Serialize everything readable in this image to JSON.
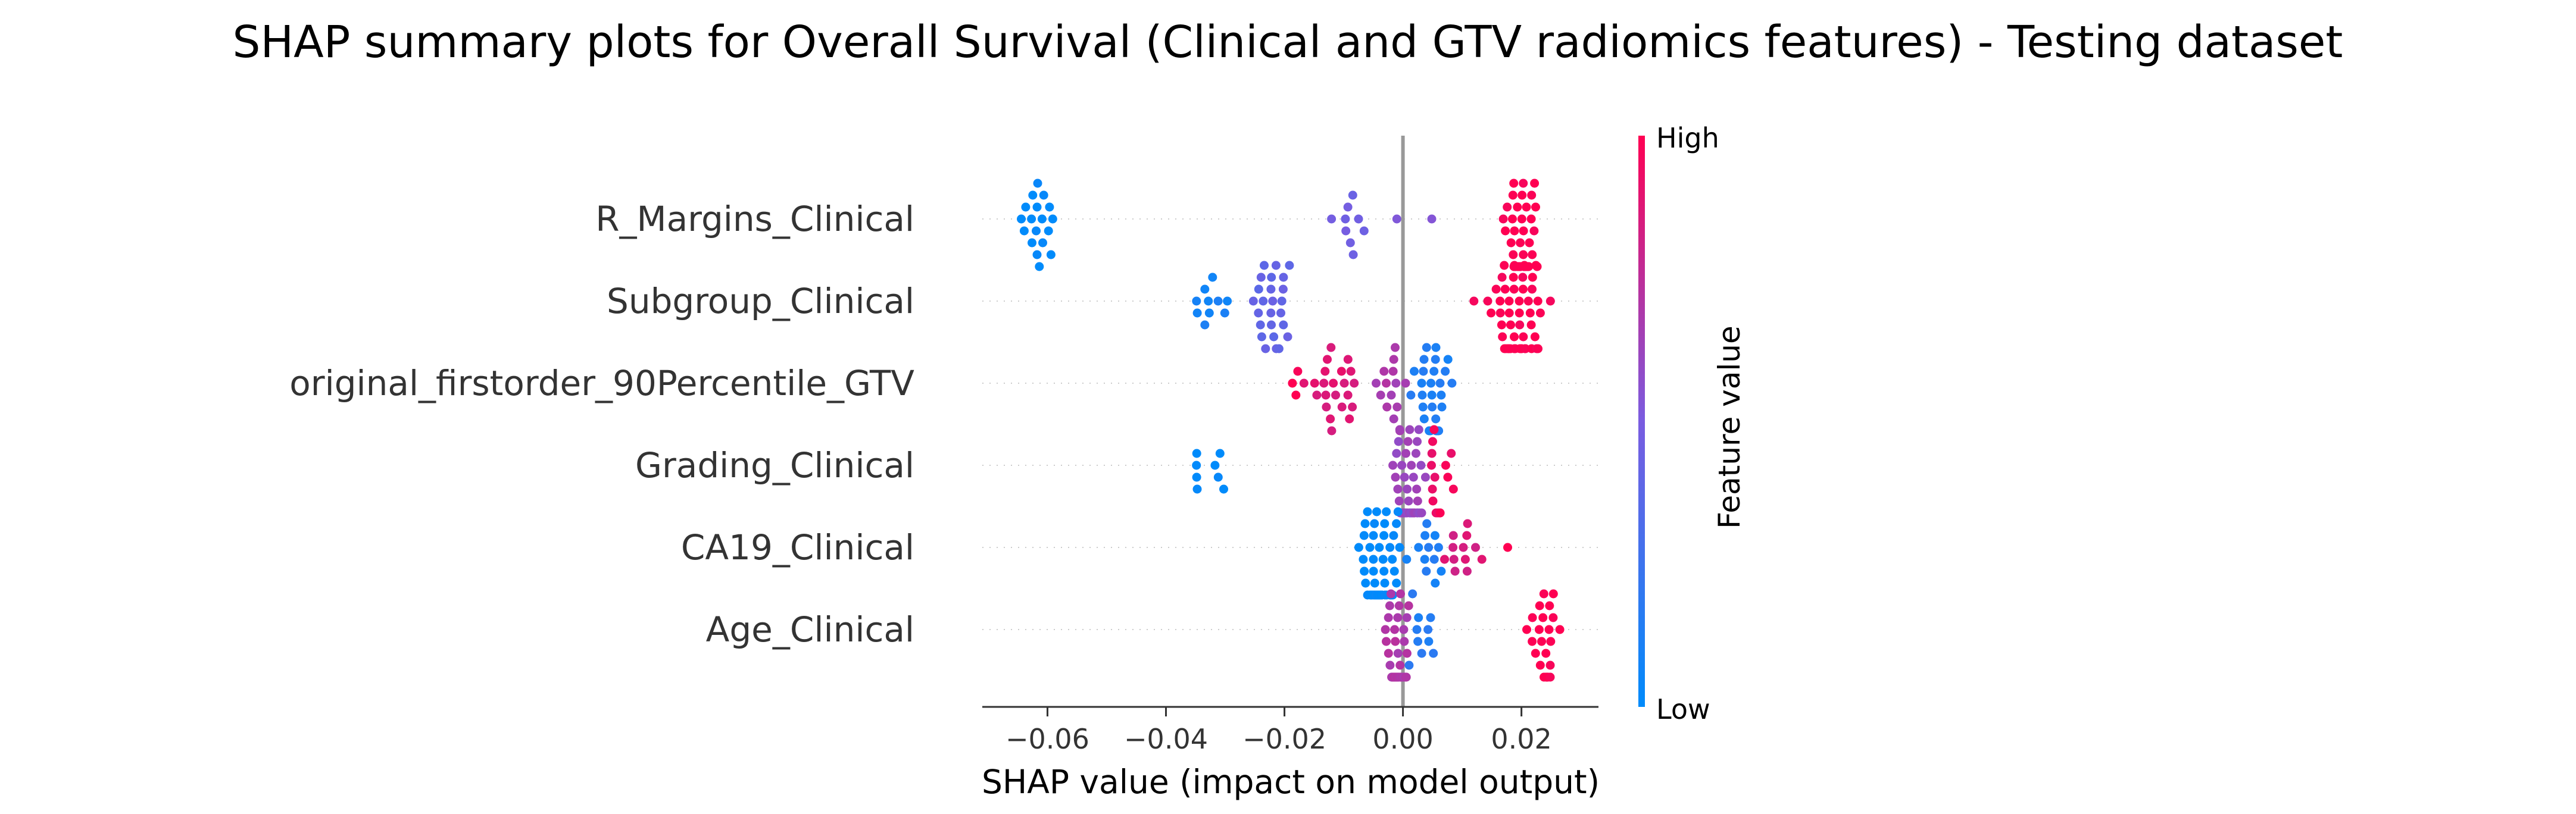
{
  "chart_data": {
    "type": "scatter",
    "subtype": "shap-beeswarm",
    "title": "SHAP summary plots for Overall Survival (Clinical and GTV radiomics features) - Testing dataset",
    "xlabel": "SHAP value (impact on model output)",
    "xlim": [
      -0.071,
      0.033
    ],
    "xticks": [
      -0.06,
      -0.04,
      -0.02,
      0.0,
      0.02
    ],
    "xtick_labels": [
      "−0.06",
      "−0.04",
      "−0.02",
      "0.00",
      "0.02"
    ],
    "colorbar": {
      "label": "Feature value",
      "high": "High",
      "low": "Low",
      "low_color": "#008bfb",
      "high_color": "#ff0052"
    },
    "features": [
      {
        "name": "R_Margins_Clinical",
        "clusters": [
          {
            "center": -0.062,
            "spread": 0.0035,
            "n": 18,
            "value": 0.0
          },
          {
            "center": -0.009,
            "spread": 0.004,
            "n": 9,
            "value": 0.45
          },
          {
            "center": -0.001,
            "spread": 0.0003,
            "n": 1,
            "value": 0.5
          },
          {
            "center": 0.005,
            "spread": 0.0002,
            "n": 1,
            "value": 0.55
          },
          {
            "center": 0.02,
            "spread": 0.0025,
            "n": 60,
            "value": 1.0
          }
        ]
      },
      {
        "name": "Subgroup_Clinical",
        "clusters": [
          {
            "center": -0.031,
            "spread": 0.004,
            "n": 10,
            "value": 0.1
          },
          {
            "center": -0.022,
            "spread": 0.003,
            "n": 25,
            "value": 0.4
          },
          {
            "center": 0.012,
            "spread": 0.0002,
            "n": 1,
            "value": 1.0
          },
          {
            "center": 0.019,
            "spread": 0.004,
            "n": 55,
            "value": 1.0
          }
        ]
      },
      {
        "name": "original_firstorder_90Percentile_GTV",
        "clusters": [
          {
            "center": -0.018,
            "spread": 0.001,
            "n": 3,
            "value": 1.0
          },
          {
            "center": -0.011,
            "spread": 0.004,
            "n": 22,
            "value": 0.88
          },
          {
            "center": -0.002,
            "spread": 0.002,
            "n": 14,
            "value": 0.68
          },
          {
            "center": 0.005,
            "spread": 0.003,
            "n": 30,
            "value": 0.12
          }
        ]
      },
      {
        "name": "Grading_Clinical",
        "clusters": [
          {
            "center": -0.035,
            "spread": 0.0008,
            "n": 4,
            "value": 0.0
          },
          {
            "center": -0.031,
            "spread": 0.0008,
            "n": 4,
            "value": 0.0
          },
          {
            "center": 0.001,
            "spread": 0.002,
            "n": 55,
            "value": 0.62
          },
          {
            "center": 0.006,
            "spread": 0.002,
            "n": 16,
            "value": 0.95
          }
        ]
      },
      {
        "name": "CA19_Clinical",
        "clusters": [
          {
            "center": -0.004,
            "spread": 0.0032,
            "n": 62,
            "value": 0.0
          },
          {
            "center": 0.004,
            "spread": 0.003,
            "n": 12,
            "value": 0.12
          },
          {
            "center": 0.01,
            "spread": 0.003,
            "n": 12,
            "value": 0.85
          },
          {
            "center": 0.018,
            "spread": 0.0003,
            "n": 1,
            "value": 1.0
          }
        ]
      },
      {
        "name": "Age_Clinical",
        "clusters": [
          {
            "center": -0.001,
            "spread": 0.002,
            "n": 45,
            "value": 0.7
          },
          {
            "center": 0.003,
            "spread": 0.002,
            "n": 10,
            "value": 0.15
          },
          {
            "center": 0.024,
            "spread": 0.0028,
            "n": 24,
            "value": 1.0
          }
        ]
      }
    ]
  }
}
